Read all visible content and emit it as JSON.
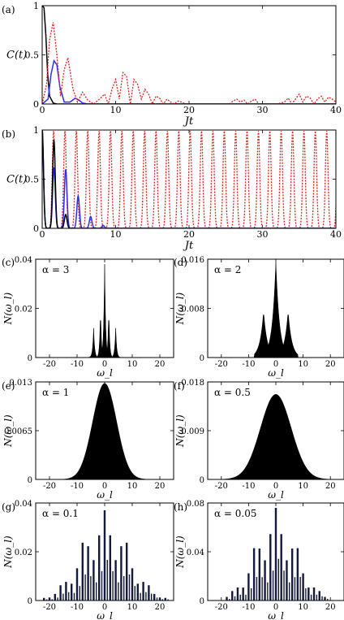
{
  "chart_data": [
    {
      "panel": "(a)",
      "type": "line",
      "ylabel": "C(t)",
      "xlabel": "Jt",
      "xlim": [
        0,
        40
      ],
      "ylim": [
        0,
        1
      ],
      "xticks": [
        "0",
        "10",
        "20",
        "30",
        "40"
      ],
      "yticks": [
        "0",
        "0.5",
        "1"
      ],
      "grid": false,
      "series": [
        {
          "color": "#000000",
          "style": "solid",
          "x": [
            0,
            0.25,
            0.5,
            0.75,
            1.0,
            1.5,
            2.0,
            3.0,
            40
          ],
          "y": [
            1.0,
            0.98,
            0.7,
            0.3,
            0.08,
            0.01,
            0.0,
            0.0,
            0.0
          ]
        },
        {
          "color": "#2c2cff",
          "style": "solid",
          "x": [
            0,
            0.8,
            1.2,
            1.6,
            2.0,
            2.4,
            3.0,
            3.8,
            4.5,
            5.0,
            5.5,
            6.2,
            7.0,
            40
          ],
          "y": [
            0.0,
            0.05,
            0.3,
            0.44,
            0.4,
            0.18,
            0.02,
            0.02,
            0.06,
            0.04,
            0.01,
            0.0,
            0.0,
            0.0
          ]
        },
        {
          "color": "#e8201c",
          "style": "dotted",
          "x": [
            0,
            0.6,
            1.0,
            1.5,
            2.0,
            2.5,
            3.0,
            3.5,
            4.2,
            4.8,
            5.5,
            6.2,
            7.0,
            7.8,
            8.5,
            9.0,
            9.5,
            10.0,
            10.5,
            11.0,
            11.5,
            12.0,
            12.5,
            13.0,
            13.5,
            14.0,
            14.5,
            15.0,
            15.5,
            16.0,
            16.5,
            17.0,
            17.5,
            18.0,
            18.5,
            19.0,
            19.5,
            20.0,
            22.0,
            24.0,
            25.5,
            26.0,
            26.5,
            27.0,
            27.5,
            28.0,
            28.5,
            29.0,
            29.5,
            30.0,
            31.0,
            32.0,
            33.0,
            33.5,
            34.0,
            34.5,
            35.0,
            35.5,
            36.0,
            36.5,
            37.0,
            37.5,
            38.0,
            38.5,
            39.0,
            39.5,
            40.0
          ],
          "y": [
            0.0,
            0.2,
            0.65,
            0.83,
            0.5,
            0.08,
            0.35,
            0.47,
            0.15,
            0.02,
            0.12,
            0.04,
            0.0,
            0.05,
            0.1,
            0.0,
            0.15,
            0.25,
            0.05,
            0.32,
            0.28,
            0.0,
            0.25,
            0.2,
            0.05,
            0.15,
            0.1,
            0.0,
            0.08,
            0.06,
            0.0,
            0.05,
            0.02,
            0.0,
            0.03,
            0.02,
            0.0,
            0.0,
            0.0,
            0.0,
            0.0,
            0.03,
            0.05,
            0.02,
            0.04,
            0.0,
            0.03,
            0.05,
            0.0,
            0.0,
            0.0,
            0.0,
            0.02,
            0.06,
            0.0,
            0.05,
            0.1,
            0.02,
            0.08,
            0.06,
            0.0,
            0.05,
            0.08,
            0.02,
            0.07,
            0.05,
            0.02
          ]
        }
      ]
    },
    {
      "panel": "(b)",
      "type": "line",
      "ylabel": "C(t)",
      "xlabel": "Jt",
      "xlim": [
        0,
        40
      ],
      "ylim": [
        0,
        1
      ],
      "xticks": [
        "0",
        "10",
        "20",
        "30",
        "40"
      ],
      "yticks": [
        "0",
        "0.5",
        "1"
      ],
      "grid": false,
      "series": [
        {
          "color": "#e8201c",
          "style": "dotted",
          "kind": "periodic_peaks",
          "period": 1.55,
          "peak": 0.99,
          "x0": 0.0,
          "xmax": 40
        },
        {
          "color": "#2c2cff",
          "style": "solid",
          "kind": "peaks",
          "peaks_x": [
            0.0,
            1.6,
            3.2,
            4.9,
            6.6,
            8.3
          ],
          "peaks_y": [
            1.0,
            0.62,
            0.6,
            0.33,
            0.12,
            0.03
          ]
        },
        {
          "color": "#000000",
          "style": "solid",
          "kind": "peaks",
          "peaks_x": [
            0.0,
            1.6,
            3.2
          ],
          "peaks_y": [
            1.0,
            0.9,
            0.14
          ]
        }
      ]
    },
    {
      "panel": "(c)",
      "type": "bar",
      "title": "α = 3",
      "xlabel": "ω_l",
      "ylabel": "N(ω_l)",
      "xlim": [
        -25,
        25
      ],
      "ylim": [
        0,
        0.04
      ],
      "xticks": [
        "-20",
        "-10",
        "0",
        "10",
        "20"
      ],
      "yticks": [
        "0",
        "0.02",
        "0.04"
      ],
      "profile": {
        "kind": "spikes",
        "centers": [
          -4,
          0,
          4
        ],
        "heights": [
          0.012,
          0.038,
          0.012
        ],
        "side": [
          [
            -1.5,
            0.021
          ],
          [
            1.5,
            0.021
          ]
        ],
        "width": 0.6,
        "color": "#000000"
      }
    },
    {
      "panel": "(d)",
      "type": "bar",
      "title": "α = 2",
      "xlabel": "ω_l",
      "ylabel": "N(ω_l)",
      "xlim": [
        -25,
        25
      ],
      "ylim": [
        0,
        0.016
      ],
      "xticks": [
        "-20",
        "-10",
        "0",
        "10",
        "20"
      ],
      "yticks": [
        "0",
        "0.008",
        "0.016"
      ],
      "profile": {
        "kind": "peaks",
        "centers": [
          -4.5,
          0,
          4.5
        ],
        "heights": [
          0.0075,
          0.0155,
          0.0075
        ],
        "width": 2.4,
        "color": "#000000"
      }
    },
    {
      "panel": "(e)",
      "type": "bar",
      "title": "α = 1",
      "xlabel": "ω_l",
      "ylabel": "N(ω_l)",
      "xlim": [
        -25,
        25
      ],
      "ylim": [
        0,
        0.013
      ],
      "xticks": [
        "-20",
        "-10",
        "0",
        "10",
        "20"
      ],
      "yticks": [
        "0",
        "0.0065",
        "0.013"
      ],
      "profile": {
        "kind": "gaussian",
        "center": 0,
        "height": 0.0128,
        "sigma": 4.3,
        "color": "#000000"
      }
    },
    {
      "panel": "(f)",
      "type": "bar",
      "title": "α = 0.5",
      "xlabel": "ω_l",
      "ylabel": "N(ω_l)",
      "xlim": [
        -25,
        25
      ],
      "ylim": [
        0,
        0.018
      ],
      "xticks": [
        "-20",
        "-10",
        "0",
        "10",
        "20"
      ],
      "yticks": [
        "0",
        "0.009",
        "0.018"
      ],
      "profile": {
        "kind": "gaussian",
        "center": 0,
        "height": 0.0157,
        "sigma": 5.6,
        "color": "#000000"
      }
    },
    {
      "panel": "(g)",
      "type": "bar",
      "title": "α = 0.1",
      "xlabel": "ω_l",
      "ylabel": "N(ω_l)",
      "xlim": [
        -25,
        25
      ],
      "ylim": [
        0,
        0.04
      ],
      "xticks": [
        "-20",
        "-10",
        "0",
        "10",
        "20"
      ],
      "yticks": [
        "0",
        "0.02",
        "0.04"
      ],
      "profile": {
        "kind": "comb",
        "spacing": 2.0,
        "envelope_height": 0.037,
        "sigma": 8.5,
        "color": "#141a3a"
      }
    },
    {
      "panel": "(h)",
      "type": "bar",
      "title": "α = 0.05",
      "xlabel": "ω_l",
      "ylabel": "N(ω_l)",
      "xlim": [
        -25,
        25
      ],
      "ylim": [
        0,
        0.08
      ],
      "xticks": [
        "-20",
        "-10",
        "0",
        "10",
        "20"
      ],
      "yticks": [
        "0",
        "0.04",
        "0.08"
      ],
      "profile": {
        "kind": "comb",
        "spacing": 2.0,
        "envelope_height": 0.076,
        "sigma": 7.5,
        "color": "#141a3a"
      }
    }
  ]
}
